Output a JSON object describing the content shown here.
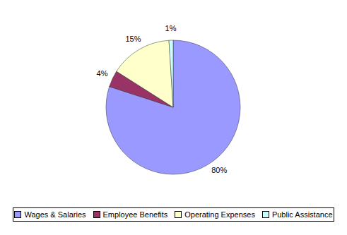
{
  "chart_data": {
    "type": "pie",
    "categories": [
      "Wages & Salaries",
      "Employee Benefits",
      "Operating Expenses",
      "Public Assistance"
    ],
    "values": [
      80,
      4,
      15,
      1
    ],
    "value_labels": [
      "80%",
      "4%",
      "15%",
      "1%"
    ],
    "colors": [
      "#9999ff",
      "#993366",
      "#ffffcc",
      "#ccffff"
    ],
    "data_labels": true,
    "legend": "bottom"
  }
}
